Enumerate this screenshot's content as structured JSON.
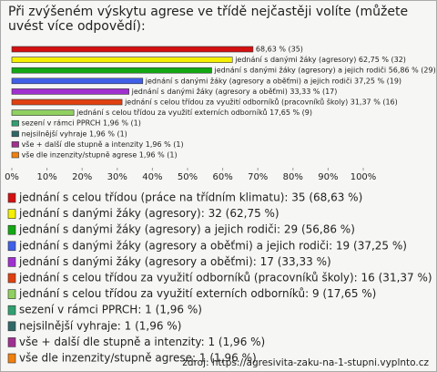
{
  "chart_data": {
    "type": "bar",
    "orientation": "horizontal",
    "title": "Při zvýšeném výskytu agrese ve třídě nejčastěji volíte (můžete uvést více odpovědí):",
    "categories": [
      "jednání s celou třídou (práce na třídním klimatu): 35 (68,63 %)",
      "jednání s danými žáky (agresory): 32 (62,75 %)",
      "jednání s danými žáky (agresory) a jejich rodiči: 29 (56,86 %)",
      "jednání s danými žáky (agresory a oběťmi) a jejich rodiči: 19 (37,25 %)",
      "jednání s danými žáky (agresory a oběťmi): 17 (33,33 %)",
      "jednání s celou třídou za využití odborníků (pracovníků školy): 16 (31,37 %)",
      "jednání s celou třídou za využití externích odborníků: 9 (17,65 %)",
      "sezení v rámci PPRCH: 1 (1,96 %)",
      "nejsilnější vyhraje: 1 (1,96 %)",
      "vše + další dle stupně a intenzity: 1 (1,96 %)",
      "vše dle inzenzity/stupně agrese: 1 (1,96 %)"
    ],
    "values": [
      68.63,
      62.75,
      56.86,
      37.25,
      33.33,
      31.37,
      17.65,
      1.96,
      1.96,
      1.96,
      1.96
    ],
    "value_labels": [
      "68,63 % (35)",
      "jednání s danými žáky (agresory) 62,75 % (32)",
      "jednání s danými žáky (agresory) a jejich rodiči 56,86 % (29)",
      "jednání s danými žáky (agresory a oběťmi) a jejich rodiči 37,25 % (19)",
      "jednání s danými žáky (agresory a oběťmi) 33,33 % (17)",
      "jednání s celou třídou za využití odborníků (pracovníků školy) 31,37 % (16)",
      "jednání s celou třídou za využití externích odborníků 17,65 % (9)",
      "sezení v rámci PPRCH 1,96 % (1)",
      "nejsilnější vyhraje 1,96 % (1)",
      "vše + další dle stupně a intenzity 1,96 % (1)",
      "vše dle inzenzity/stupně agrese 1,96 % (1)"
    ],
    "colors": [
      "#d41010",
      "#f4f000",
      "#12a812",
      "#4060e8",
      "#a030d0",
      "#e04010",
      "#90d060",
      "#30a070",
      "#306868",
      "#a03090",
      "#f08010"
    ],
    "xlim": [
      0,
      100
    ],
    "xticks": [
      {
        "value": 0,
        "label": "0%"
      },
      {
        "value": 10,
        "label": "10%"
      },
      {
        "value": 20,
        "label": "20%"
      },
      {
        "value": 30,
        "label": "30%"
      },
      {
        "value": 40,
        "label": "40%"
      },
      {
        "value": 50,
        "label": "50%"
      },
      {
        "value": 60,
        "label": "60%"
      },
      {
        "value": 70,
        "label": "70%"
      },
      {
        "value": 80,
        "label": "80%"
      },
      {
        "value": 90,
        "label": "90%"
      },
      {
        "value": 100,
        "label": "100%"
      }
    ],
    "source": "zdroj: https://agresivita-zaku-na-1-stupni.vyplnto.cz"
  }
}
